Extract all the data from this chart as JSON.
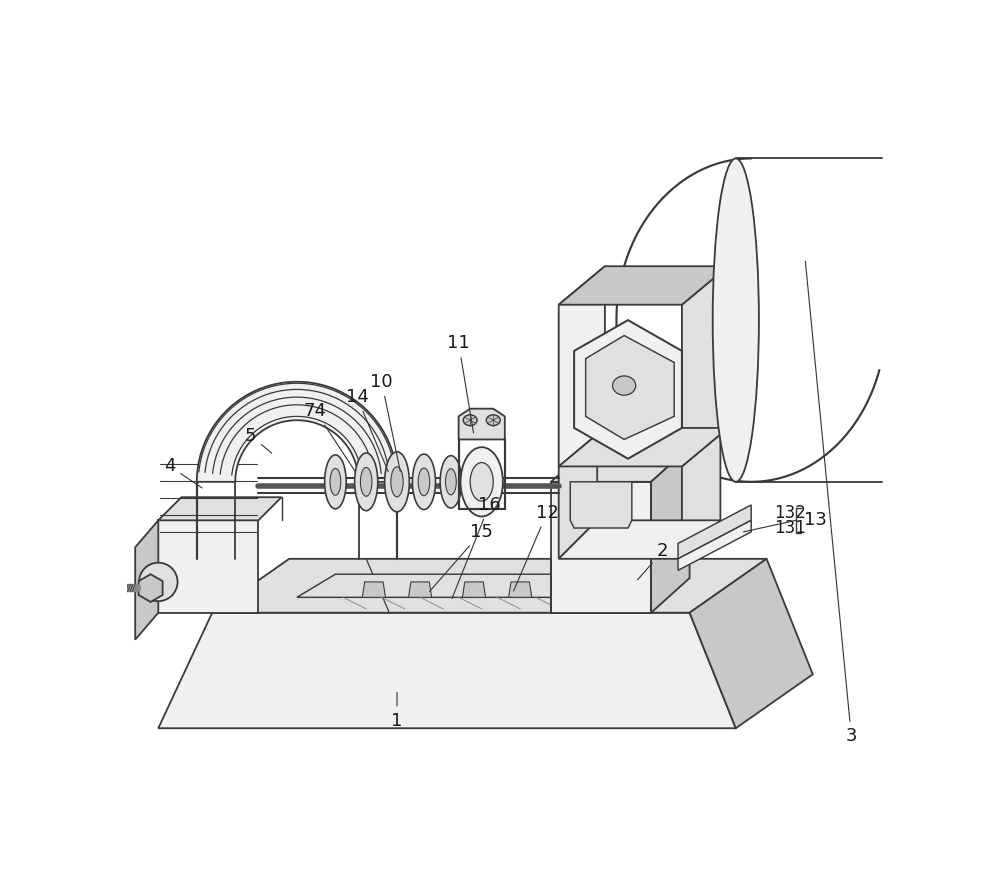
{
  "figsize": [
    10.0,
    8.71
  ],
  "dpi": 100,
  "bg": "#ffffff",
  "lc": "#3a3a3a",
  "lw": 1.3,
  "lw_thin": 0.7,
  "lw_thick": 2.0,
  "gray_light": "#f0f0f0",
  "gray_mid": "#e0e0e0",
  "gray_dark": "#c8c8c8",
  "gray_darker": "#b0b0b0",
  "label_fs": 13,
  "label_color": "#1a1a1a",
  "anno_lw": 0.8,
  "anno_color": "#333333"
}
